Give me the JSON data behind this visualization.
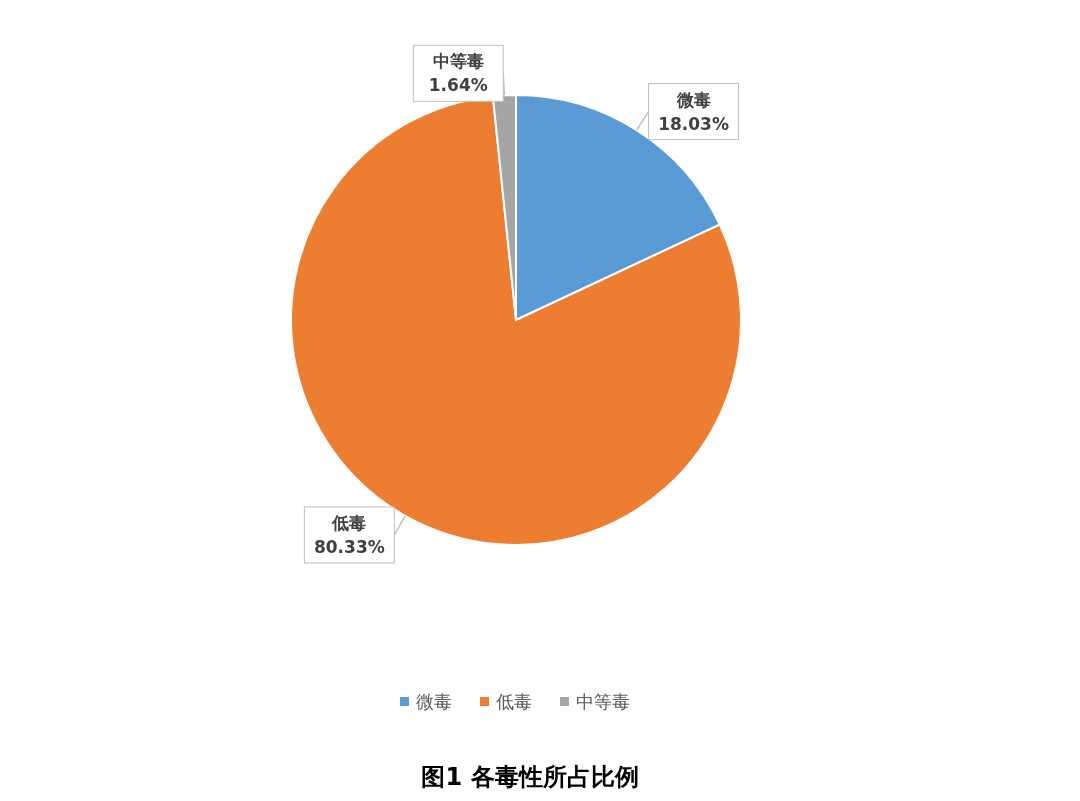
{
  "chart_data": {
    "type": "pie",
    "title": "图1 各毒性所占比例",
    "categories": [
      "微毒",
      "低毒",
      "中等毒"
    ],
    "values": [
      18.03,
      80.33,
      1.64
    ],
    "value_labels": [
      "18.03%",
      "80.33%",
      "1.64%"
    ],
    "colors": [
      "#5b9bd5",
      "#ed7d31",
      "#a5a5a5"
    ],
    "legend": "bottom"
  }
}
